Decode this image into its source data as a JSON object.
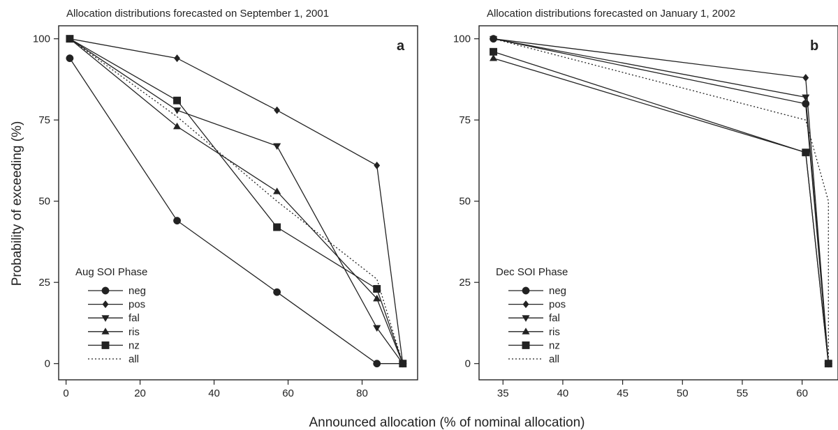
{
  "figure": {
    "xlabel": "Announced allocation (% of nominal allocation)",
    "ylabel": "Probability of exceeding (%)"
  },
  "chart_data": [
    {
      "type": "line",
      "panel": "a",
      "title": "Allocation distributions forecasted on September 1, 2001",
      "xlim": [
        -2,
        95
      ],
      "ylim": [
        -5,
        104
      ],
      "xticks": [
        0,
        20,
        40,
        60,
        80
      ],
      "yticks": [
        0,
        25,
        50,
        75,
        100
      ],
      "legend_title": "Aug SOI Phase",
      "legend_position": "bottom-left",
      "series": [
        {
          "name": "neg",
          "marker": "circle",
          "points": [
            [
              1,
              94
            ],
            [
              30,
              44
            ],
            [
              57,
              22
            ],
            [
              84,
              0
            ],
            [
              91,
              0
            ]
          ]
        },
        {
          "name": "pos",
          "marker": "diamond",
          "points": [
            [
              1,
              100
            ],
            [
              30,
              94
            ],
            [
              57,
              78
            ],
            [
              84,
              61
            ],
            [
              91,
              0
            ]
          ]
        },
        {
          "name": "fal",
          "marker": "triangle-down",
          "points": [
            [
              1,
              100
            ],
            [
              30,
              78
            ],
            [
              57,
              67
            ],
            [
              84,
              11
            ],
            [
              91,
              0
            ]
          ]
        },
        {
          "name": "ris",
          "marker": "triangle-up",
          "points": [
            [
              1,
              100
            ],
            [
              30,
              73
            ],
            [
              57,
              53
            ],
            [
              84,
              20
            ],
            [
              91,
              0
            ]
          ]
        },
        {
          "name": "nz",
          "marker": "square",
          "points": [
            [
              1,
              100
            ],
            [
              30,
              81
            ],
            [
              57,
              42
            ],
            [
              84,
              23
            ],
            [
              91,
              0
            ]
          ]
        },
        {
          "name": "all",
          "marker": "none",
          "style": "dotted",
          "points": [
            [
              1,
              100
            ],
            [
              30,
              76
            ],
            [
              57,
              50
            ],
            [
              84,
              26
            ],
            [
              91,
              0
            ]
          ]
        }
      ]
    },
    {
      "type": "line",
      "panel": "b",
      "title": "Allocation distributions forecasted on January 1, 2002",
      "xlim": [
        33,
        63
      ],
      "ylim": [
        -5,
        104
      ],
      "xticks": [
        35,
        40,
        45,
        50,
        55,
        60
      ],
      "yticks": [
        0,
        25,
        50,
        75,
        100
      ],
      "legend_title": "Dec SOI Phase",
      "legend_position": "bottom-left",
      "series": [
        {
          "name": "neg",
          "marker": "circle",
          "points": [
            [
              34.2,
              100
            ],
            [
              60.3,
              80
            ],
            [
              62.2,
              0
            ]
          ]
        },
        {
          "name": "pos",
          "marker": "diamond",
          "points": [
            [
              34.2,
              100
            ],
            [
              60.3,
              88
            ],
            [
              62.2,
              0
            ]
          ]
        },
        {
          "name": "fal",
          "marker": "triangle-down",
          "points": [
            [
              34.2,
              100
            ],
            [
              60.3,
              82
            ],
            [
              62.2,
              0
            ]
          ]
        },
        {
          "name": "ris",
          "marker": "triangle-up",
          "points": [
            [
              34.2,
              94
            ],
            [
              60.3,
              65
            ],
            [
              62.2,
              0
            ]
          ]
        },
        {
          "name": "nz",
          "marker": "square",
          "points": [
            [
              34.2,
              96
            ],
            [
              60.3,
              65
            ],
            [
              62.2,
              0
            ]
          ]
        },
        {
          "name": "all",
          "marker": "none",
          "style": "dotted",
          "points": [
            [
              34.2,
              100
            ],
            [
              60.3,
              75
            ],
            [
              62.2,
              50
            ],
            [
              62.2,
              0
            ]
          ]
        }
      ]
    }
  ]
}
